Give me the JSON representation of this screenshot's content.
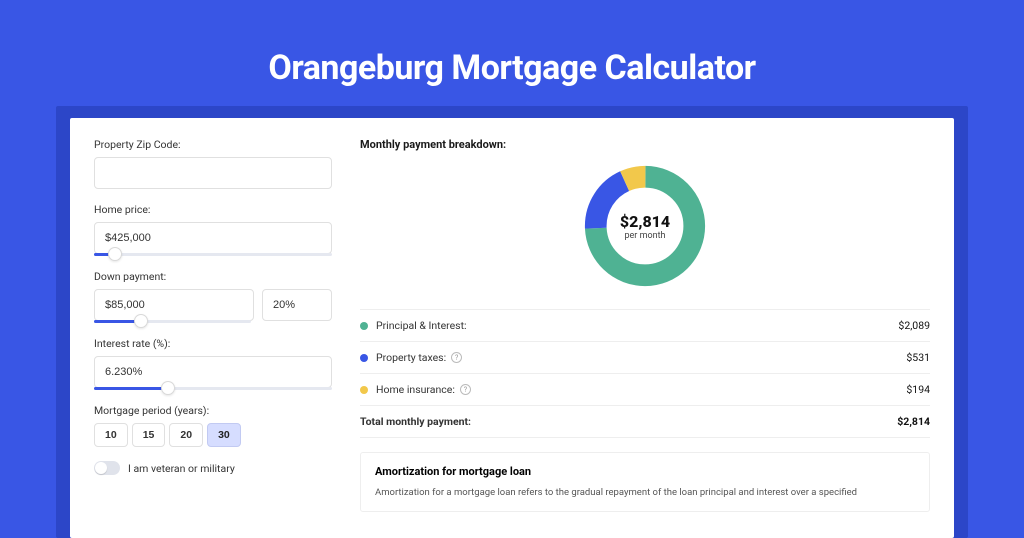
{
  "page": {
    "title": "Orangeburg Mortgage Calculator",
    "background_color": "#3956e5",
    "band_color": "#2c46c8"
  },
  "form": {
    "zip": {
      "label": "Property Zip Code:",
      "value": ""
    },
    "home_price": {
      "label": "Home price:",
      "value": "$425,000",
      "slider_fill_pct": 9
    },
    "down_payment": {
      "label": "Down payment:",
      "amount": "$85,000",
      "percent": "20%",
      "slider_fill_pct": 30
    },
    "interest_rate": {
      "label": "Interest rate (%):",
      "value": "6.230%",
      "slider_fill_pct": 31
    },
    "period": {
      "label": "Mortgage period (years):",
      "options": [
        "10",
        "15",
        "20",
        "30"
      ],
      "selected": "30"
    },
    "veteran": {
      "label": "I am veteran or military",
      "checked": false
    }
  },
  "breakdown": {
    "title": "Monthly payment breakdown:",
    "donut": {
      "amount": "$2,814",
      "sub": "per month",
      "segments": [
        {
          "name": "principal_interest",
          "pct": 74.2,
          "color": "#4fb293"
        },
        {
          "name": "property_taxes",
          "pct": 18.9,
          "color": "#3956e5"
        },
        {
          "name": "home_insurance",
          "pct": 6.9,
          "color": "#f2c84b"
        }
      ]
    },
    "items": [
      {
        "label": "Principal & Interest:",
        "value": "$2,089",
        "color": "#4fb293",
        "help": false
      },
      {
        "label": "Property taxes:",
        "value": "$531",
        "color": "#3956e5",
        "help": true
      },
      {
        "label": "Home insurance:",
        "value": "$194",
        "color": "#f2c84b",
        "help": true
      }
    ],
    "total": {
      "label": "Total monthly payment:",
      "value": "$2,814"
    }
  },
  "amortization": {
    "title": "Amortization for mortgage loan",
    "text": "Amortization for a mortgage loan refers to the gradual repayment of the loan principal and interest over a specified"
  }
}
